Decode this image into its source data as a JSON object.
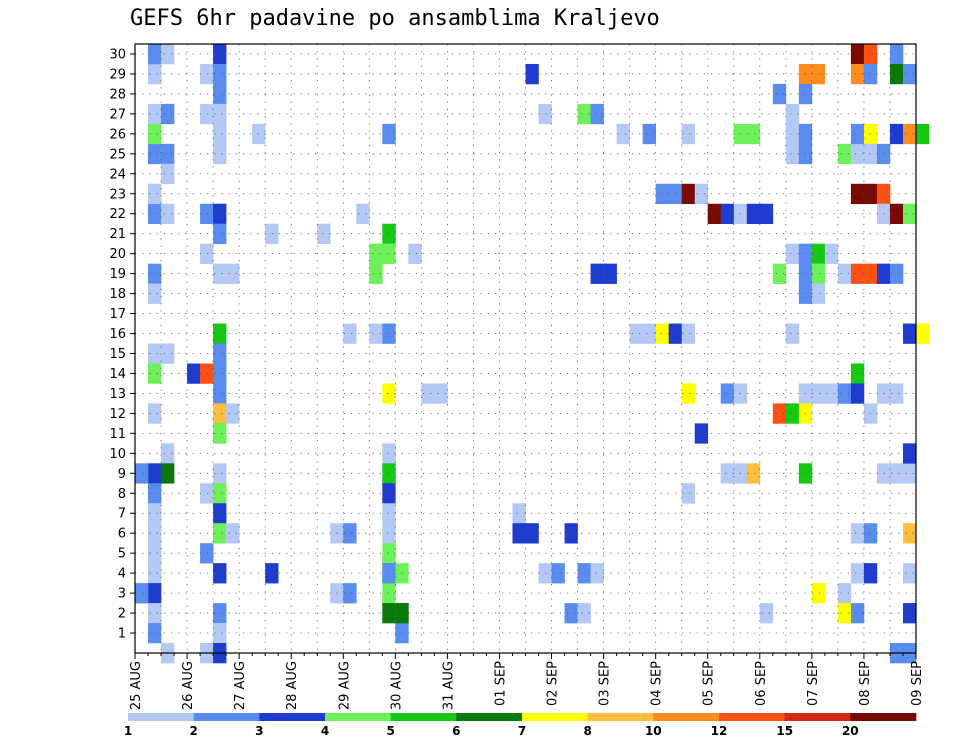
{
  "title": "GEFS 6hr padavine po ansamblima Kraljevo",
  "chart_data": {
    "type": "heatmap",
    "title": "GEFS 6hr padavine po ansamblima Kraljevo",
    "y_ticks": [
      "1",
      "2",
      "3",
      "4",
      "5",
      "6",
      "7",
      "8",
      "9",
      "10",
      "11",
      "12",
      "13",
      "14",
      "15",
      "16",
      "17",
      "18",
      "19",
      "20",
      "21",
      "22",
      "23",
      "24",
      "25",
      "26",
      "27",
      "28",
      "29",
      "30"
    ],
    "x_ticks": [
      "25 AUG",
      "26 AUG",
      "27 AUG",
      "28 AUG",
      "29 AUG",
      "30 AUG",
      "31 AUG",
      "01 SEP",
      "02 SEP",
      "03 SEP",
      "04 SEP",
      "05 SEP",
      "06 SEP",
      "07 SEP",
      "08 SEP",
      "09 SEP"
    ],
    "x_steps_per_day": 4,
    "y_range": [
      0,
      30
    ],
    "colorbar": {
      "labels": [
        "1",
        "2",
        "3",
        "4",
        "5",
        "6",
        "7",
        "8",
        "10",
        "12",
        "15",
        "20"
      ],
      "colors": [
        "#b4c8f5",
        "#5a8cf0",
        "#1e3ccd",
        "#6ef05a",
        "#14c814",
        "#0a780a",
        "#ffff00",
        "#ffbe3c",
        "#ff8c1e",
        "#ff5014",
        "#d22814",
        "#780a00"
      ]
    },
    "cells": [
      [
        1,
        29,
        0
      ],
      [
        1,
        30,
        1
      ],
      [
        1,
        25,
        1
      ],
      [
        1,
        19,
        1
      ],
      [
        1,
        15,
        0
      ],
      [
        1,
        14,
        3
      ],
      [
        1,
        12,
        0
      ],
      [
        1,
        9,
        2
      ],
      [
        1,
        8,
        1
      ],
      [
        1,
        7,
        0
      ],
      [
        1,
        6,
        0
      ],
      [
        1,
        5,
        0
      ],
      [
        1,
        4,
        0
      ],
      [
        1,
        3,
        2
      ],
      [
        1,
        2,
        0
      ],
      [
        1,
        1,
        1
      ],
      [
        1,
        26,
        3
      ],
      [
        1,
        22,
        1
      ],
      [
        1,
        23,
        0
      ],
      [
        1,
        18,
        0
      ],
      [
        1,
        27,
        0
      ],
      [
        2,
        30,
        0
      ],
      [
        2,
        27,
        1
      ],
      [
        2,
        25,
        1
      ],
      [
        2,
        24,
        0
      ],
      [
        2,
        22,
        0
      ],
      [
        2,
        15,
        0
      ],
      [
        2,
        10,
        0
      ],
      [
        2,
        9,
        5
      ],
      [
        2,
        0,
        0
      ],
      [
        0,
        9,
        1
      ],
      [
        0,
        3,
        1
      ],
      [
        4,
        14,
        2
      ],
      [
        5,
        14,
        9
      ],
      [
        5,
        5,
        1
      ],
      [
        5,
        8,
        0
      ],
      [
        5,
        22,
        1
      ],
      [
        5,
        27,
        0
      ],
      [
        5,
        29,
        0
      ],
      [
        5,
        20,
        0
      ],
      [
        5,
        0,
        0
      ],
      [
        6,
        30,
        2
      ],
      [
        6,
        29,
        1
      ],
      [
        6,
        28,
        1
      ],
      [
        6,
        27,
        0
      ],
      [
        6,
        26,
        0
      ],
      [
        6,
        25,
        0
      ],
      [
        6,
        22,
        2
      ],
      [
        6,
        21,
        1
      ],
      [
        6,
        19,
        0
      ],
      [
        6,
        16,
        4
      ],
      [
        6,
        15,
        1
      ],
      [
        6,
        14,
        1
      ],
      [
        6,
        13,
        1
      ],
      [
        6,
        12,
        7
      ],
      [
        6,
        11,
        3
      ],
      [
        6,
        9,
        0
      ],
      [
        6,
        8,
        3
      ],
      [
        6,
        7,
        2
      ],
      [
        6,
        6,
        3
      ],
      [
        6,
        4,
        2
      ],
      [
        6,
        2,
        1
      ],
      [
        6,
        1,
        0
      ],
      [
        6,
        0,
        2
      ],
      [
        7,
        19,
        0
      ],
      [
        7,
        12,
        0
      ],
      [
        7,
        6,
        0
      ],
      [
        9,
        26,
        0
      ],
      [
        10,
        21,
        0
      ],
      [
        10,
        4,
        2
      ],
      [
        14,
        21,
        0
      ],
      [
        15,
        6,
        0
      ],
      [
        15,
        3,
        0
      ],
      [
        16,
        16,
        0
      ],
      [
        16,
        6,
        1
      ],
      [
        16,
        3,
        1
      ],
      [
        17,
        22,
        0
      ],
      [
        18,
        20,
        3
      ],
      [
        18,
        19,
        3
      ],
      [
        18,
        16,
        0
      ],
      [
        19,
        21,
        4
      ],
      [
        19,
        20,
        3
      ],
      [
        19,
        16,
        1
      ],
      [
        19,
        13,
        6
      ],
      [
        19,
        10,
        0
      ],
      [
        19,
        9,
        4
      ],
      [
        19,
        8,
        2
      ],
      [
        19,
        7,
        0
      ],
      [
        19,
        6,
        0
      ],
      [
        19,
        5,
        3
      ],
      [
        19,
        4,
        1
      ],
      [
        19,
        3,
        3
      ],
      [
        19,
        2,
        5
      ],
      [
        19,
        26,
        1
      ],
      [
        19,
        4,
        1
      ],
      [
        20,
        2,
        4
      ],
      [
        20,
        4,
        3
      ],
      [
        20,
        1,
        1
      ],
      [
        21,
        20,
        0
      ],
      [
        20,
        2,
        5
      ],
      [
        22,
        13,
        0
      ],
      [
        23,
        13,
        0
      ],
      [
        29,
        7,
        0
      ],
      [
        29,
        6,
        2
      ],
      [
        30,
        6,
        2
      ],
      [
        30,
        29,
        2
      ],
      [
        31,
        27,
        0
      ],
      [
        31,
        4,
        0
      ],
      [
        32,
        4,
        1
      ],
      [
        33,
        6,
        2
      ],
      [
        33,
        2,
        1
      ],
      [
        34,
        2,
        0
      ],
      [
        34,
        27,
        3
      ],
      [
        35,
        27,
        1
      ],
      [
        34,
        4,
        1
      ],
      [
        35,
        4,
        0
      ],
      [
        35,
        19,
        2
      ],
      [
        36,
        19,
        2
      ],
      [
        37,
        26,
        0
      ],
      [
        38,
        16,
        0
      ],
      [
        39,
        16,
        0
      ],
      [
        39,
        26,
        1
      ],
      [
        40,
        23,
        1
      ],
      [
        41,
        23,
        1
      ],
      [
        40,
        16,
        6
      ],
      [
        41,
        16,
        2
      ],
      [
        42,
        23,
        11
      ],
      [
        43,
        23,
        0
      ],
      [
        42,
        26,
        0
      ],
      [
        42,
        16,
        0
      ],
      [
        42,
        13,
        6
      ],
      [
        42,
        8,
        0
      ],
      [
        43,
        11,
        2
      ],
      [
        44,
        22,
        11
      ],
      [
        45,
        22,
        2
      ],
      [
        46,
        22,
        0
      ],
      [
        47,
        22,
        2
      ],
      [
        45,
        13,
        1
      ],
      [
        46,
        13,
        0
      ],
      [
        45,
        9,
        0
      ],
      [
        46,
        9,
        0
      ],
      [
        47,
        9,
        7
      ],
      [
        46,
        26,
        3
      ],
      [
        47,
        26,
        3
      ],
      [
        48,
        22,
        2
      ],
      [
        48,
        2,
        0
      ],
      [
        49,
        28,
        1
      ],
      [
        49,
        19,
        3
      ],
      [
        49,
        12,
        9
      ],
      [
        50,
        12,
        4
      ],
      [
        50,
        27,
        0
      ],
      [
        50,
        25,
        0
      ],
      [
        51,
        25,
        1
      ],
      [
        50,
        26,
        0
      ],
      [
        51,
        26,
        1
      ],
      [
        50,
        20,
        0
      ],
      [
        51,
        20,
        1
      ],
      [
        51,
        19,
        1
      ],
      [
        51,
        18,
        1
      ],
      [
        50,
        16,
        0
      ],
      [
        51,
        29,
        8
      ],
      [
        52,
        29,
        8
      ],
      [
        51,
        28,
        1
      ],
      [
        51,
        13,
        0
      ],
      [
        52,
        13,
        0
      ],
      [
        52,
        20,
        4
      ],
      [
        52,
        19,
        3
      ],
      [
        52,
        18,
        0
      ],
      [
        52,
        3,
        6
      ],
      [
        51,
        12,
        6
      ],
      [
        51,
        9,
        4
      ],
      [
        53,
        20,
        0
      ],
      [
        53,
        13,
        0
      ],
      [
        54,
        25,
        3
      ],
      [
        55,
        25,
        0
      ],
      [
        54,
        19,
        0
      ],
      [
        54,
        13,
        1
      ],
      [
        54,
        3,
        0
      ],
      [
        54,
        2,
        6
      ],
      [
        55,
        30,
        11
      ],
      [
        56,
        30,
        9
      ],
      [
        55,
        29,
        8
      ],
      [
        56,
        29,
        1
      ],
      [
        55,
        26,
        1
      ],
      [
        56,
        26,
        6
      ],
      [
        55,
        23,
        11
      ],
      [
        56,
        23,
        11
      ],
      [
        57,
        23,
        9
      ],
      [
        55,
        19,
        9
      ],
      [
        56,
        19,
        9
      ],
      [
        55,
        14,
        4
      ],
      [
        55,
        13,
        2
      ],
      [
        55,
        6,
        0
      ],
      [
        56,
        6,
        1
      ],
      [
        55,
        4,
        0
      ],
      [
        56,
        4,
        2
      ],
      [
        55,
        2,
        1
      ],
      [
        56,
        12,
        0
      ],
      [
        56,
        25,
        0
      ],
      [
        57,
        25,
        1
      ],
      [
        57,
        22,
        0
      ],
      [
        57,
        19,
        2
      ],
      [
        58,
        19,
        1
      ],
      [
        57,
        13,
        0
      ],
      [
        58,
        13,
        0
      ],
      [
        57,
        9,
        0
      ],
      [
        58,
        9,
        0
      ],
      [
        59,
        9,
        0
      ],
      [
        58,
        30,
        1
      ],
      [
        58,
        29,
        5
      ],
      [
        59,
        29,
        1
      ],
      [
        58,
        26,
        2
      ],
      [
        59,
        26,
        8
      ],
      [
        60,
        26,
        4
      ],
      [
        58,
        22,
        11
      ],
      [
        59,
        22,
        3
      ],
      [
        59,
        16,
        2
      ],
      [
        60,
        16,
        6
      ],
      [
        59,
        10,
        2
      ],
      [
        59,
        6,
        7
      ],
      [
        59,
        4,
        0
      ],
      [
        59,
        2,
        2
      ],
      [
        59,
        0,
        1
      ],
      [
        58,
        0,
        1
      ]
    ]
  }
}
